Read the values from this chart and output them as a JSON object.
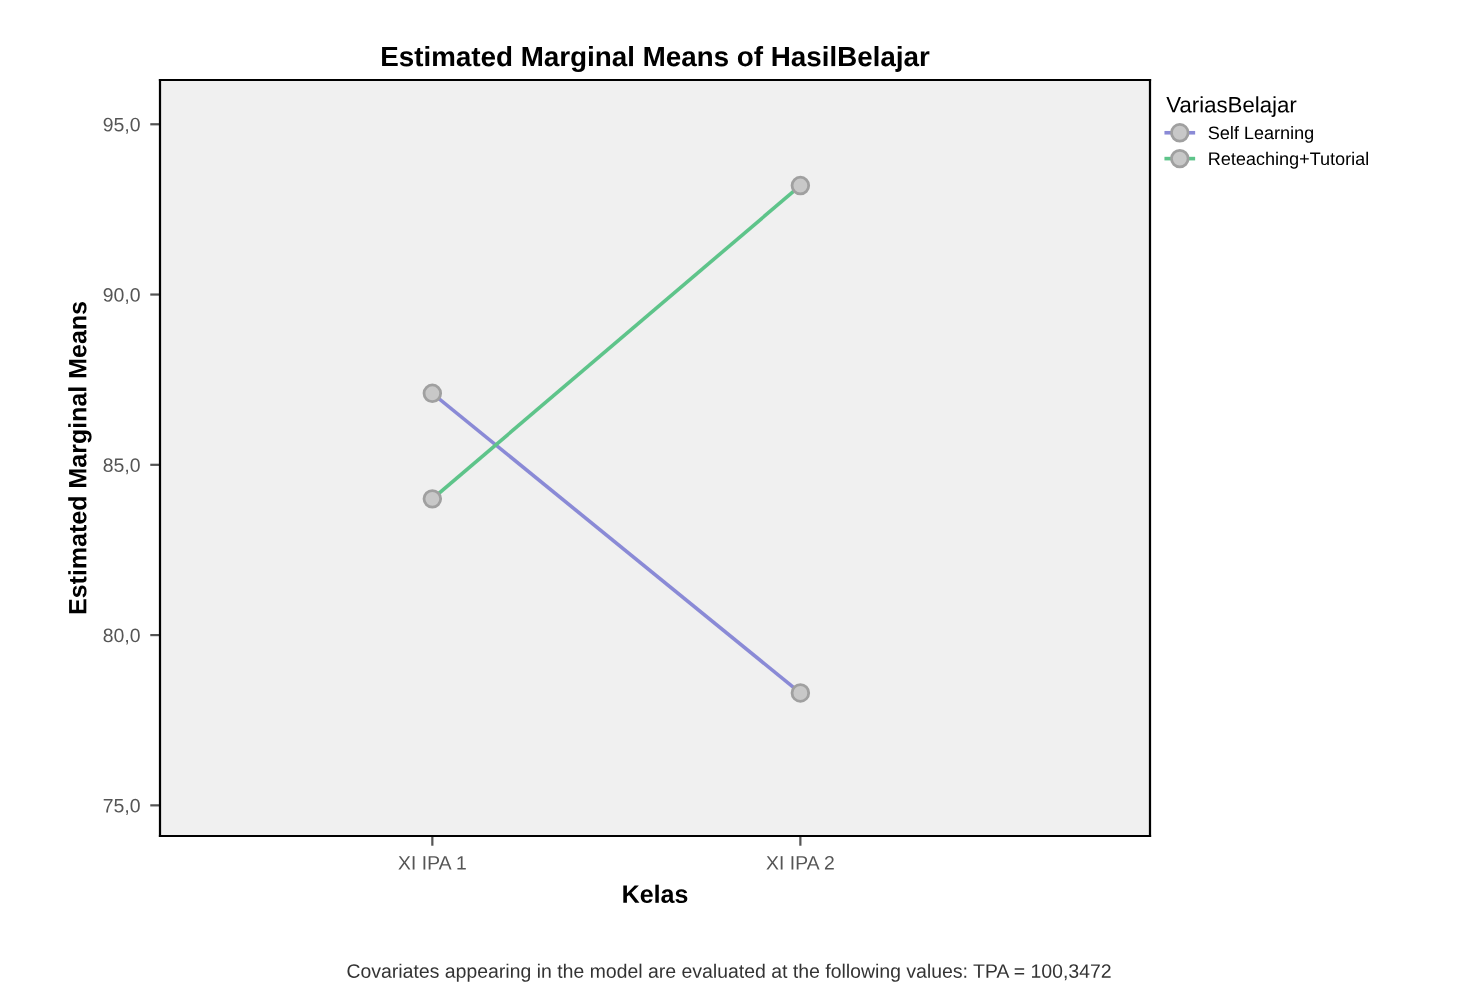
{
  "chart_data": {
    "type": "line",
    "title": "Estimated Marginal Means of HasilBelajar",
    "xlabel": "Kelas",
    "ylabel": "Estimated Marginal Means",
    "legend_title": "VariasBelajar",
    "categories": [
      "XI IPA 1",
      "XI IPA 2"
    ],
    "series": [
      {
        "name": "Self Learning",
        "color": "#8a8ad6",
        "values": [
          87.1,
          78.3
        ]
      },
      {
        "name": "Reteaching+Tutorial",
        "color": "#5ec48a",
        "values": [
          84.0,
          93.2
        ]
      }
    ],
    "ylim": [
      74.1,
      96.3
    ],
    "yticks": [
      {
        "value": 75,
        "label": "75,0"
      },
      {
        "value": 80,
        "label": "80,0"
      },
      {
        "value": 85,
        "label": "85,0"
      },
      {
        "value": 90,
        "label": "90,0"
      },
      {
        "value": 95,
        "label": "95,0"
      }
    ],
    "marker": "circle",
    "legend": "top right",
    "grid": false,
    "annotations": [
      "Covariates appearing in the model are evaluated at the following values: TPA = 100,3472"
    ]
  }
}
